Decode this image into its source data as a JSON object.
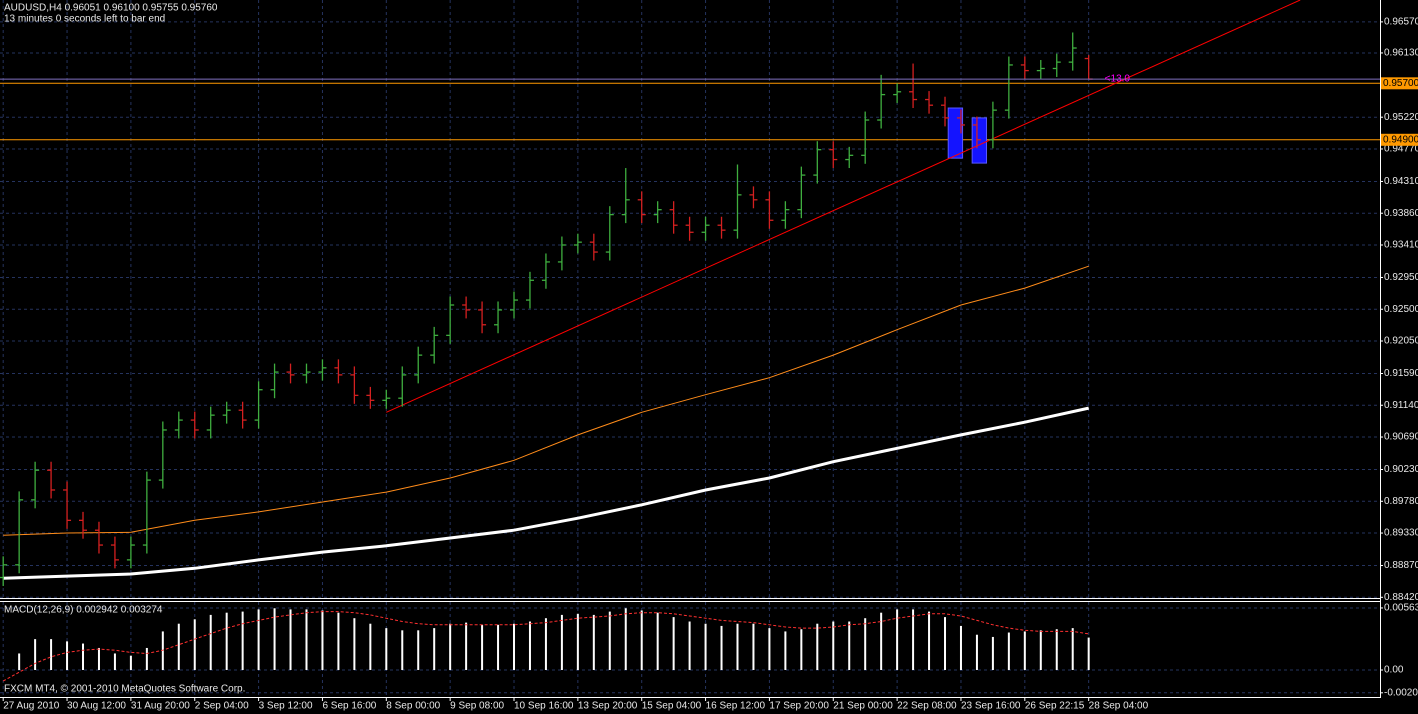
{
  "chart_data": [
    {
      "type": "ohlc",
      "title": "AUDUSD,H4  0.96051 0.96100 0.95755 0.95760",
      "subtitle": "13 minutes 0 seconds left to bar end",
      "x": [
        0,
        2,
        4,
        6,
        8,
        10,
        12,
        14,
        16,
        18,
        20,
        22,
        24,
        26,
        28,
        30,
        32,
        34,
        36,
        38,
        40,
        42,
        44,
        46,
        48,
        50,
        52,
        54,
        56,
        58,
        60,
        62,
        64,
        66,
        68,
        70,
        72,
        74,
        76,
        78,
        80,
        82,
        84,
        86,
        88,
        90,
        92,
        94,
        96,
        98,
        100,
        102,
        104,
        106,
        108,
        110,
        112,
        114,
        116,
        118,
        120,
        122,
        124,
        126,
        128,
        130,
        132,
        134,
        136
      ],
      "open": [
        0.887,
        0.8888,
        0.898,
        0.9022,
        0.8994,
        0.8951,
        0.8937,
        0.8916,
        0.8895,
        0.8916,
        0.9008,
        0.9079,
        0.9093,
        0.9079,
        0.91,
        0.9107,
        0.9093,
        0.9136,
        0.9161,
        0.9157,
        0.9161,
        0.9167,
        0.9157,
        0.9128,
        0.9121,
        0.9124,
        0.9157,
        0.9185,
        0.9213,
        0.9256,
        0.9249,
        0.9228,
        0.9249,
        0.9263,
        0.9291,
        0.9317,
        0.9341,
        0.9345,
        0.9331,
        0.9384,
        0.9405,
        0.9384,
        0.9391,
        0.9369,
        0.9359,
        0.9369,
        0.9362,
        0.9412,
        0.9405,
        0.9376,
        0.9391,
        0.944,
        0.9476,
        0.9462,
        0.9468,
        0.9518,
        0.9554,
        0.9558,
        0.9547,
        0.9539,
        0.9521,
        0.9511,
        0.949,
        0.9532,
        0.9596,
        0.9588,
        0.9591,
        0.96,
        0.96051
      ],
      "high": [
        0.89,
        0.8992,
        0.9034,
        0.9034,
        0.9006,
        0.8963,
        0.8949,
        0.8928,
        0.8928,
        0.902,
        0.9091,
        0.9105,
        0.9105,
        0.9112,
        0.9119,
        0.9119,
        0.9148,
        0.9173,
        0.9173,
        0.9173,
        0.9179,
        0.9179,
        0.9169,
        0.914,
        0.9136,
        0.9169,
        0.9197,
        0.9225,
        0.9268,
        0.9268,
        0.9261,
        0.9261,
        0.9275,
        0.9303,
        0.9329,
        0.9353,
        0.9357,
        0.9357,
        0.9396,
        0.945,
        0.9417,
        0.9403,
        0.9403,
        0.9381,
        0.9381,
        0.9381,
        0.9455,
        0.9424,
        0.9417,
        0.9403,
        0.9452,
        0.9488,
        0.9488,
        0.948,
        0.953,
        0.9582,
        0.957,
        0.9598,
        0.9559,
        0.9551,
        0.9533,
        0.9523,
        0.9544,
        0.9608,
        0.9608,
        0.9603,
        0.9612,
        0.9642,
        0.961
      ],
      "low": [
        0.8858,
        0.8876,
        0.8968,
        0.8982,
        0.8939,
        0.8925,
        0.8904,
        0.8883,
        0.8883,
        0.8904,
        0.8996,
        0.9067,
        0.9067,
        0.9067,
        0.9088,
        0.9081,
        0.9081,
        0.9124,
        0.9145,
        0.9145,
        0.9149,
        0.9145,
        0.9116,
        0.9109,
        0.9109,
        0.9112,
        0.9145,
        0.9173,
        0.9201,
        0.9237,
        0.9216,
        0.9216,
        0.9237,
        0.9251,
        0.9279,
        0.9305,
        0.9329,
        0.9319,
        0.9319,
        0.9372,
        0.9372,
        0.9372,
        0.9357,
        0.9347,
        0.9347,
        0.935,
        0.935,
        0.9393,
        0.9364,
        0.9364,
        0.9379,
        0.9428,
        0.945,
        0.945,
        0.9456,
        0.9506,
        0.9542,
        0.9535,
        0.9527,
        0.9509,
        0.9499,
        0.9478,
        0.9478,
        0.952,
        0.9576,
        0.9576,
        0.9579,
        0.9588,
        0.95755
      ],
      "close": [
        0.8888,
        0.898,
        0.9022,
        0.8994,
        0.8951,
        0.8937,
        0.8916,
        0.8895,
        0.8916,
        0.9008,
        0.9079,
        0.9093,
        0.9079,
        0.91,
        0.9107,
        0.9093,
        0.9136,
        0.9161,
        0.9157,
        0.9161,
        0.9167,
        0.9157,
        0.9128,
        0.9121,
        0.9124,
        0.9157,
        0.9185,
        0.9213,
        0.9256,
        0.9249,
        0.9228,
        0.9249,
        0.9263,
        0.9291,
        0.9317,
        0.9341,
        0.9345,
        0.9331,
        0.9384,
        0.9405,
        0.9384,
        0.9391,
        0.9369,
        0.9359,
        0.9369,
        0.9362,
        0.9412,
        0.9405,
        0.9376,
        0.9391,
        0.944,
        0.9476,
        0.9462,
        0.9468,
        0.9518,
        0.9554,
        0.9558,
        0.9547,
        0.9539,
        0.9521,
        0.9511,
        0.949,
        0.9532,
        0.9596,
        0.9588,
        0.9591,
        0.96,
        0.962,
        0.9576
      ],
      "up_color": "#3fae3f",
      "down_color": "#d42020",
      "lines": [
        {
          "x": [
            0,
            8,
            16,
            24,
            32,
            40,
            48,
            56,
            64,
            72,
            80,
            88,
            96,
            104,
            112,
            120,
            128,
            136
          ],
          "values": [
            0.893,
            0.8933,
            0.8934,
            0.8951,
            0.8963,
            0.8977,
            0.8991,
            0.9011,
            0.9036,
            0.9072,
            0.9104,
            0.9129,
            0.9153,
            0.9185,
            0.9221,
            0.9256,
            0.928,
            0.9311
          ],
          "color": "#ff8c1a",
          "width": 1
        },
        {
          "x": [
            0,
            8,
            16,
            24,
            32,
            40,
            48,
            56,
            64,
            72,
            80,
            88,
            96,
            104,
            112,
            120,
            128,
            136
          ],
          "values": [
            0.8869,
            0.8872,
            0.8875,
            0.8883,
            0.8895,
            0.8906,
            0.8915,
            0.8926,
            0.8937,
            0.8954,
            0.8973,
            0.8994,
            0.9011,
            0.9034,
            0.9053,
            0.9072,
            0.909,
            0.911
          ],
          "color": "#ffffff",
          "width": 3
        }
      ],
      "trendline": {
        "x": [
          48,
          162.5
        ],
        "values": [
          0.9104,
          0.9688
        ],
        "color": "#ff0000"
      },
      "levels": [
        {
          "value": 0.957,
          "label": "0.95700"
        },
        {
          "value": 0.949,
          "label": "0.94900"
        }
      ],
      "level_color": "#ff9900",
      "bid_color": "#8070c0",
      "zones": [
        {
          "x": [
            118.4,
            120.2
          ],
          "values": [
            0.9535,
            0.9464
          ]
        },
        {
          "x": [
            121.4,
            123.2
          ],
          "values": [
            0.9521,
            0.9457
          ]
        }
      ],
      "zone_color": "#1414ff",
      "annotation": "<13.0",
      "annotation_color": "#ff00ff",
      "xlim": [
        -0.4,
        172.5
      ],
      "xticks": [
        {
          "value": 0,
          "label": "27 Aug 2010"
        },
        {
          "value": 8,
          "label": "30 Aug 12:00"
        },
        {
          "value": 16,
          "label": "31 Aug 20:00"
        },
        {
          "value": 24,
          "label": "2 Sep 04:00"
        },
        {
          "value": 32,
          "label": "3 Sep 12:00"
        },
        {
          "value": 40,
          "label": "6 Sep 16:00"
        },
        {
          "value": 48,
          "label": "8 Sep 00:00"
        },
        {
          "value": 56,
          "label": "9 Sep 08:00"
        },
        {
          "value": 64,
          "label": "10 Sep 16:00"
        },
        {
          "value": 72,
          "label": "13 Sep 20:00"
        },
        {
          "value": 80,
          "label": "15 Sep 04:00"
        },
        {
          "value": 88,
          "label": "16 Sep 12:00"
        },
        {
          "value": 96,
          "label": "17 Sep 20:00"
        },
        {
          "value": 104,
          "label": "21 Sep 00:00"
        },
        {
          "value": 112,
          "label": "22 Sep 08:00"
        },
        {
          "value": 120,
          "label": "23 Sep 16:00"
        },
        {
          "value": 128,
          "label": "26 Sep 22:15"
        },
        {
          "value": 136,
          "label": "28 Sep 04:00"
        }
      ],
      "ylim": [
        0.8841,
        0.9688
      ],
      "yticks": [
        {
          "value": 0.9657,
          "label": "0.96570"
        },
        {
          "value": 0.9613,
          "label": "0.96130"
        },
        {
          "value": 0.9522,
          "label": "0.95220"
        },
        {
          "value": 0.9477,
          "label": "0.94770"
        },
        {
          "value": 0.9431,
          "label": "0.94310"
        },
        {
          "value": 0.9386,
          "label": "0.93860"
        },
        {
          "value": 0.9341,
          "label": "0.93410"
        },
        {
          "value": 0.9295,
          "label": "0.92950"
        },
        {
          "value": 0.925,
          "label": "0.92500"
        },
        {
          "value": 0.9205,
          "label": "0.92050"
        },
        {
          "value": 0.9159,
          "label": "0.91590"
        },
        {
          "value": 0.9114,
          "label": "0.91140"
        },
        {
          "value": 0.9069,
          "label": "0.90690"
        },
        {
          "value": 0.9023,
          "label": "0.90230"
        },
        {
          "value": 0.8978,
          "label": "0.89780"
        },
        {
          "value": 0.8933,
          "label": "0.89330"
        },
        {
          "value": 0.8887,
          "label": "0.88870"
        },
        {
          "value": 0.8842,
          "label": "0.88420"
        }
      ],
      "grid": true
    },
    {
      "type": "macd",
      "title": "MACD(12,26,9) 0.002942 0.003274",
      "footer": "FXCM MT4, © 2001-2010 MetaQuotes Software Corp.",
      "values": [
        0.0,
        0.0015,
        0.0028,
        0.0028,
        0.0026,
        0.0024,
        0.002,
        0.0015,
        0.0013,
        0.002,
        0.0035,
        0.0042,
        0.0046,
        0.005,
        0.0052,
        0.0053,
        0.0055,
        0.0056,
        0.0055,
        0.0055,
        0.0054,
        0.0052,
        0.0047,
        0.0042,
        0.0038,
        0.0036,
        0.0036,
        0.0038,
        0.0042,
        0.0043,
        0.0041,
        0.0041,
        0.0042,
        0.0044,
        0.0047,
        0.005,
        0.0051,
        0.005,
        0.0053,
        0.0056,
        0.0054,
        0.0052,
        0.0048,
        0.0044,
        0.0042,
        0.004,
        0.0042,
        0.0042,
        0.0038,
        0.0035,
        0.0037,
        0.0042,
        0.0044,
        0.0044,
        0.0047,
        0.0052,
        0.0055,
        0.0055,
        0.0053,
        0.0048,
        0.004,
        0.0032,
        0.003,
        0.0034,
        0.0035,
        0.0036,
        0.0037,
        0.0038,
        0.002942
      ],
      "color": "#ffffff",
      "signal": {
        "values": [
          -0.001,
          -0.0002,
          0.0006,
          0.0012,
          0.0016,
          0.0018,
          0.0019,
          0.0018,
          0.0016,
          0.0015,
          0.0018,
          0.0023,
          0.0028,
          0.0033,
          0.0038,
          0.0042,
          0.0045,
          0.0048,
          0.005,
          0.0052,
          0.0053,
          0.0053,
          0.0052,
          0.005,
          0.0047,
          0.0044,
          0.0042,
          0.0041,
          0.0041,
          0.0041,
          0.0041,
          0.0041,
          0.0041,
          0.0042,
          0.0043,
          0.0045,
          0.0047,
          0.0048,
          0.0049,
          0.0051,
          0.0052,
          0.0052,
          0.0051,
          0.0049,
          0.0047,
          0.0045,
          0.0044,
          0.0043,
          0.0041,
          0.0039,
          0.0038,
          0.0038,
          0.0039,
          0.0041,
          0.0042,
          0.0044,
          0.0047,
          0.0049,
          0.0051,
          0.0051,
          0.0049,
          0.0045,
          0.0041,
          0.0038,
          0.0036,
          0.0035,
          0.0035,
          0.0035,
          0.003274
        ],
        "color": "#ff3030"
      },
      "ylim": [
        -0.00245,
        0.00617
      ],
      "yticks": [
        0.00563,
        {
          "value": 0,
          "label": "0.00"
        },
        -0.00207
      ],
      "grid": true
    }
  ]
}
